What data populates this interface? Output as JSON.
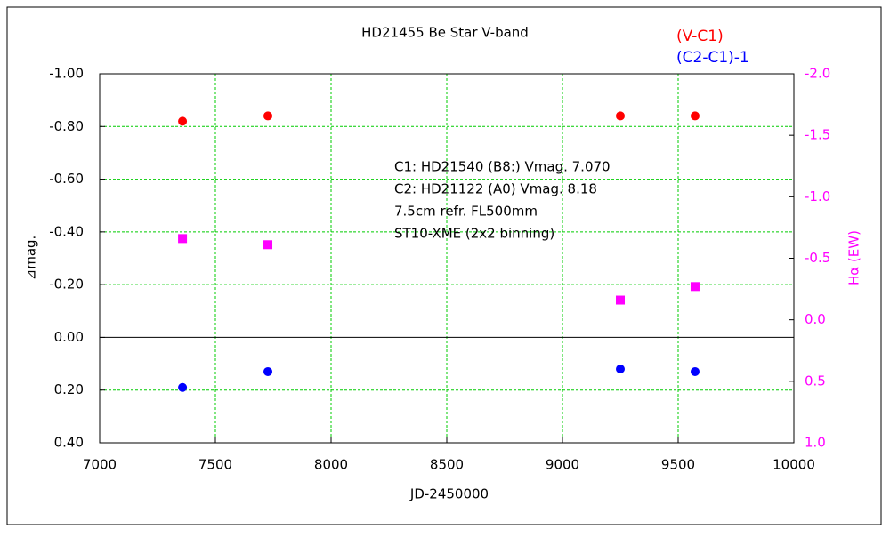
{
  "chart_data": {
    "type": "scatter",
    "title": "HD21455    Be Star    V-band",
    "x_label": "JD-2450000",
    "y_label": "⊿mag.",
    "y2_label": "Hα (EW)",
    "annotations": [
      "C1: HD21540 (B8:) Vmag. 7.070",
      "C2: HD21122 (A0) Vmag. 8.18",
      "7.5cm refr. FL500mm",
      "ST10-XME (2x2 binning)"
    ],
    "x": [
      7358,
      7727,
      9250,
      9573
    ],
    "series": [
      {
        "name": "(V-C1)",
        "color": "#ff0000",
        "marker": "circle",
        "values": [
          -0.82,
          -0.84,
          -0.84,
          -0.84
        ]
      },
      {
        "name": "(C2-C1)-1",
        "color": "#0000ff",
        "marker": "circle",
        "values": [
          0.19,
          0.13,
          0.12,
          0.13
        ]
      },
      {
        "color": "#ff00ff",
        "marker": "square",
        "axis": "y2",
        "values": [
          -0.66,
          -0.61,
          -0.16,
          -0.27
        ]
      }
    ],
    "xlim": [
      7000,
      10000
    ],
    "xticks": [
      7000,
      7500,
      8000,
      8500,
      9000,
      9500,
      10000
    ],
    "ylim": [
      -1,
      0.4
    ],
    "yticks": [
      {
        "value": -1,
        "label": "-1.00"
      },
      {
        "value": -0.8,
        "label": "-0.80"
      },
      {
        "value": -0.6,
        "label": "-0.60"
      },
      {
        "value": -0.4,
        "label": "-0.40"
      },
      {
        "value": -0.2,
        "label": "-0.20"
      },
      {
        "value": 0,
        "label": "0.00"
      },
      {
        "value": 0.2,
        "label": "0.20"
      },
      {
        "value": 0.4,
        "label": "0.40"
      }
    ],
    "y2lim": [
      -2,
      1
    ],
    "y2ticks": [
      {
        "value": -2,
        "label": "-2.0"
      },
      {
        "value": -1.5,
        "label": "-1.5"
      },
      {
        "value": -1,
        "label": "-1.0"
      },
      {
        "value": -0.5,
        "label": "-0.5"
      },
      {
        "value": 0,
        "label": "0.0"
      },
      {
        "value": 0.5,
        "label": "0.5"
      },
      {
        "value": 1,
        "label": "1.0"
      }
    ],
    "grid": true,
    "legend": "top-right"
  }
}
